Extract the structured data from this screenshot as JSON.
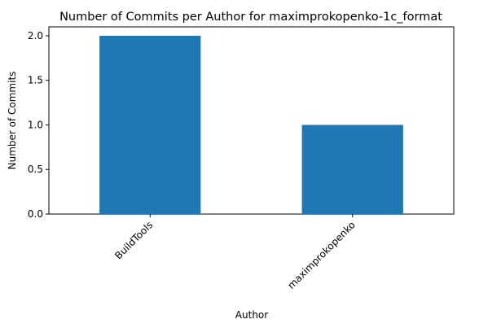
{
  "chart_data": {
    "type": "bar",
    "title": "Number of Commits per Author for maximprokopenko-1c_format",
    "xlabel": "Author",
    "ylabel": "Number of Commits",
    "categories": [
      "BuildTools",
      "maximprokopenko"
    ],
    "values": [
      2,
      1
    ],
    "ylim": [
      0,
      2.1
    ],
    "yticks": [
      "0.0",
      "0.5",
      "1.0",
      "1.5",
      "2.0"
    ],
    "bar_color": "#1f77b4",
    "grid": false,
    "legend": false
  }
}
